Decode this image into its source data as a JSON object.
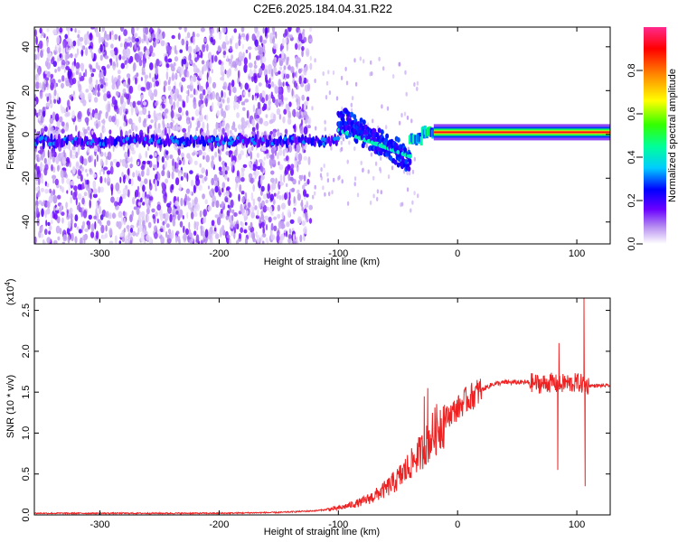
{
  "title": "C2E6.2025.184.04.31.R22",
  "chart_data": [
    {
      "type": "heatmap",
      "xlabel": "Height of straight line (km)",
      "ylabel": "Frequency (Hz)",
      "xlim": [
        -355,
        128
      ],
      "ylim": [
        -50,
        49
      ],
      "xticks": [
        -300,
        -200,
        -100,
        0,
        100
      ],
      "yticks": [
        -40,
        -20,
        0,
        20,
        40
      ],
      "colorbar": {
        "label": "Normalized spectral amplitude",
        "range": [
          0,
          1
        ],
        "ticks": [
          "0.0",
          "0.2",
          "0.4",
          "0.6",
          "0.8"
        ],
        "colors": [
          "#ffffff",
          "#8a2be2",
          "#0000ff",
          "#00ffff",
          "#00ff00",
          "#ffff00",
          "#ff7f00",
          "#ff0000",
          "#ff1493"
        ]
      },
      "bands": [
        {
          "x": [
            -355,
            -123
          ],
          "freq_center": -3,
          "freq_width": 4,
          "peak_amplitude": 0.25,
          "noise": "broadband -50 to 49 Hz, amplitude 0.0-0.1"
        },
        {
          "x": [
            -130,
            -100
          ],
          "freq_center": -2,
          "freq_width": 3,
          "peak_amplitude": 0.25
        },
        {
          "x": [
            -100,
            -40
          ],
          "freq_center_start": 2,
          "freq_center_end": -14,
          "peak_amplitude": 0.3
        },
        {
          "x": [
            -40,
            -20
          ],
          "freq_center": 0,
          "peak_amplitude": 0.5
        },
        {
          "x": [
            -20,
            128
          ],
          "freq_center": 1,
          "freq_width": 2,
          "peak_amplitude": 1.0
        }
      ]
    },
    {
      "type": "line",
      "xlabel": "Height of straight line (km)",
      "ylabel": "SNR (10 * v/v)",
      "y_multiplier": "(x10",
      "y_multiplier_exp": "4",
      "y_multiplier_close": ")",
      "xlim": [
        -355,
        128
      ],
      "ylim": [
        0,
        2.65
      ],
      "xticks": [
        -300,
        -200,
        -100,
        0,
        100
      ],
      "yticks": [
        "0.0",
        "0.5",
        "1.0",
        "1.5",
        "2.0",
        "2.5"
      ],
      "color": "#ee2222",
      "series": [
        {
          "x": [
            -355,
            -300,
            -250,
            -200,
            -150,
            -120,
            -100,
            -90,
            -80,
            -70,
            -60,
            -50,
            -40,
            -35,
            -30,
            -25,
            -20,
            -15,
            -10,
            -5,
            0,
            5,
            10,
            20,
            30,
            40,
            50,
            60,
            70,
            80,
            85,
            90,
            95,
            100,
            105,
            110,
            120,
            128
          ],
          "y": [
            0.02,
            0.02,
            0.02,
            0.02,
            0.03,
            0.05,
            0.08,
            0.12,
            0.16,
            0.23,
            0.32,
            0.44,
            0.6,
            0.7,
            0.78,
            0.88,
            1.0,
            1.1,
            1.18,
            1.25,
            1.3,
            1.38,
            1.43,
            1.53,
            1.6,
            1.62,
            1.62,
            1.62,
            1.6,
            1.62,
            1.58,
            1.62,
            1.6,
            1.62,
            1.6,
            1.58,
            1.58,
            1.58
          ],
          "spikes": [
            {
              "x": -28,
              "y": 1.45
            },
            {
              "x": -25,
              "y": 1.55
            },
            {
              "x": 85,
              "y": 2.1
            },
            {
              "x": 84,
              "y": 0.55
            },
            {
              "x": 106,
              "y": 2.65
            },
            {
              "x": 107,
              "y": 0.35
            }
          ]
        }
      ]
    }
  ]
}
